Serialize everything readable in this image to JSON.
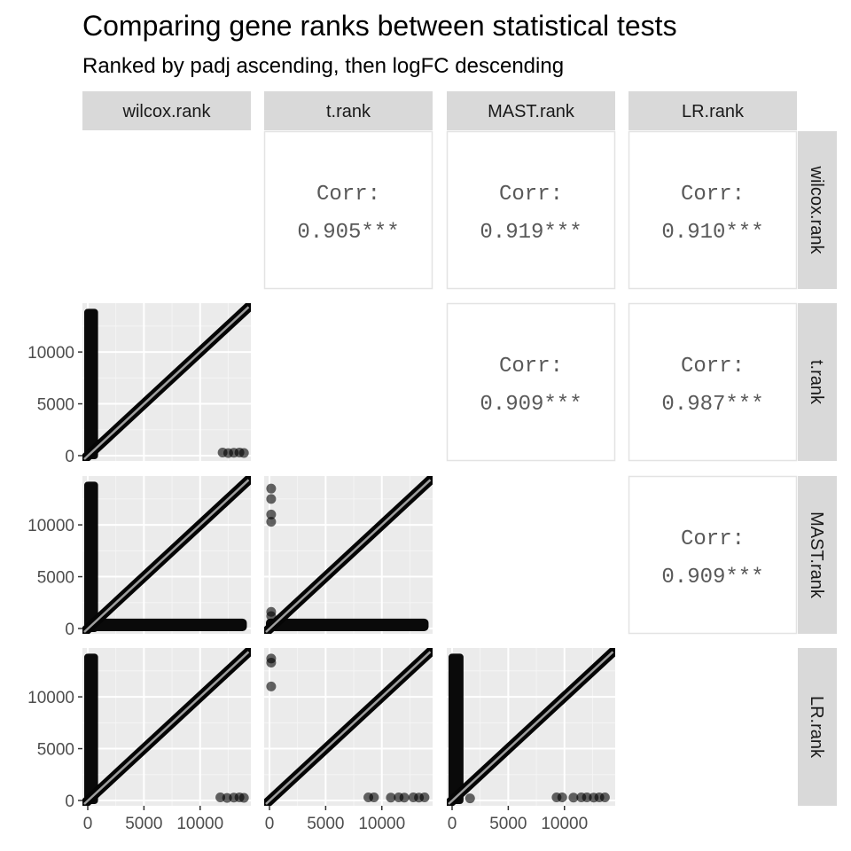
{
  "chart_data": {
    "type": "scatter",
    "title": "Comparing gene ranks between statistical tests",
    "subtitle": "Ranked by padj ascending, then logFC descending",
    "variables": [
      "wilcox.rank",
      "t.rank",
      "MAST.rank",
      "LR.rank"
    ],
    "axis_range": [
      0,
      14000
    ],
    "tick_values": [
      0,
      5000,
      10000
    ],
    "tick_labels": [
      "0",
      "5000",
      "10000"
    ],
    "grid": true,
    "correlation_label": "Corr:",
    "correlations": [
      {
        "row": "wilcox.rank",
        "col": "t.rank",
        "value": "0.905***"
      },
      {
        "row": "wilcox.rank",
        "col": "MAST.rank",
        "value": "0.919***"
      },
      {
        "row": "wilcox.rank",
        "col": "LR.rank",
        "value": "0.910***"
      },
      {
        "row": "t.rank",
        "col": "MAST.rank",
        "value": "0.909***"
      },
      {
        "row": "t.rank",
        "col": "LR.rank",
        "value": "0.987***"
      },
      {
        "row": "MAST.rank",
        "col": "LR.rank",
        "value": "0.909***"
      }
    ],
    "scatter_panels": [
      {
        "x": "wilcox.rank",
        "y": "t.rank",
        "diagonal": [
          [
            0,
            0
          ],
          [
            14000,
            14000
          ]
        ],
        "vertical_band": {
          "x": [
            0,
            600
          ],
          "y": [
            0,
            14000
          ]
        },
        "points": [
          [
            12000,
            300
          ],
          [
            12500,
            250
          ],
          [
            13000,
            280
          ],
          [
            13500,
            300
          ],
          [
            13900,
            260
          ]
        ]
      },
      {
        "x": "wilcox.rank",
        "y": "MAST.rank",
        "diagonal": [
          [
            0,
            0
          ],
          [
            14000,
            14000
          ]
        ],
        "vertical_band": {
          "x": [
            0,
            600
          ],
          "y": [
            0,
            14000
          ]
        },
        "horizontal_band": {
          "x": [
            0,
            14000
          ],
          "y": [
            0,
            700
          ]
        },
        "points": []
      },
      {
        "x": "t.rank",
        "y": "MAST.rank",
        "diagonal": [
          [
            0,
            0
          ],
          [
            14000,
            14000
          ]
        ],
        "horizontal_band": {
          "x": [
            0,
            14000
          ],
          "y": [
            0,
            700
          ]
        },
        "points": [
          [
            150,
            13500
          ],
          [
            150,
            12500
          ],
          [
            150,
            11000
          ],
          [
            150,
            10300
          ],
          [
            150,
            1600
          ],
          [
            150,
            1200
          ]
        ]
      },
      {
        "x": "wilcox.rank",
        "y": "LR.rank",
        "diagonal": [
          [
            0,
            0
          ],
          [
            14000,
            14000
          ]
        ],
        "vertical_band": {
          "x": [
            0,
            600
          ],
          "y": [
            0,
            14000
          ]
        },
        "points": [
          [
            11800,
            300
          ],
          [
            12400,
            250
          ],
          [
            13000,
            280
          ],
          [
            13500,
            300
          ],
          [
            13900,
            260
          ]
        ]
      },
      {
        "x": "t.rank",
        "y": "LR.rank",
        "diagonal": [
          [
            0,
            0
          ],
          [
            14000,
            14000
          ]
        ],
        "points": [
          [
            150,
            13700
          ],
          [
            150,
            13300
          ],
          [
            150,
            11000
          ],
          [
            8800,
            300
          ],
          [
            9300,
            300
          ],
          [
            10800,
            280
          ],
          [
            11500,
            300
          ],
          [
            12000,
            280
          ],
          [
            12800,
            300
          ],
          [
            13300,
            280
          ],
          [
            13800,
            300
          ]
        ]
      },
      {
        "x": "MAST.rank",
        "y": "LR.rank",
        "diagonal": [
          [
            0,
            0
          ],
          [
            14000,
            14000
          ]
        ],
        "vertical_band": {
          "x": [
            0,
            700
          ],
          "y": [
            0,
            14000
          ]
        },
        "points": [
          [
            1600,
            200
          ],
          [
            9300,
            300
          ],
          [
            9800,
            300
          ],
          [
            10800,
            280
          ],
          [
            11500,
            300
          ],
          [
            12000,
            300
          ],
          [
            12600,
            280
          ],
          [
            13100,
            300
          ],
          [
            13600,
            300
          ]
        ]
      }
    ]
  }
}
